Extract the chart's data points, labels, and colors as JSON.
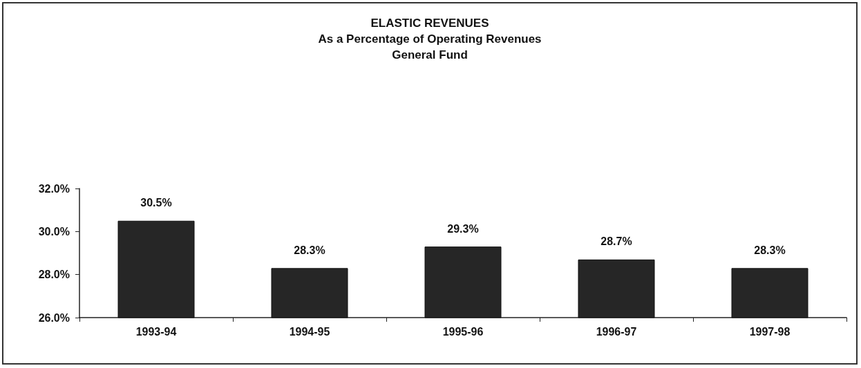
{
  "chart_data": {
    "type": "bar",
    "title": "ELASTIC REVENUES\nAs a Percentage of Operating Revenues\nGeneral Fund",
    "categories": [
      "1993-94",
      "1994-95",
      "1995-96",
      "1996-97",
      "1997-98"
    ],
    "values": [
      30.5,
      28.3,
      29.3,
      28.7,
      28.3
    ],
    "value_labels": [
      "30.5%",
      "28.3%",
      "29.3%",
      "28.7%",
      "28.3%"
    ],
    "color": "#262626",
    "ylim": [
      26,
      32
    ],
    "yticks": [
      {
        "value": 26,
        "label": "26.0%"
      },
      {
        "value": 28,
        "label": "28.0%"
      },
      {
        "value": 30,
        "label": "30.0%"
      },
      {
        "value": 32,
        "label": "32.0%"
      }
    ],
    "grid": false
  }
}
